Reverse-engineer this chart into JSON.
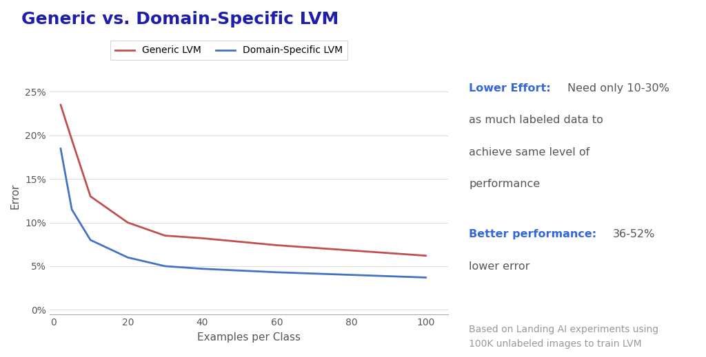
{
  "title": "Generic vs. Domain-Specific LVM",
  "title_color": "#1e1eaa",
  "title_fontsize": 18,
  "xlabel": "Examples per Class",
  "ylabel": "Error",
  "background_color": "#ffffff",
  "generic_x": [
    2,
    5,
    10,
    20,
    30,
    40,
    60,
    80,
    100
  ],
  "generic_y": [
    0.235,
    0.195,
    0.13,
    0.1,
    0.085,
    0.082,
    0.074,
    0.068,
    0.062
  ],
  "specific_x": [
    2,
    5,
    10,
    20,
    30,
    40,
    60,
    80,
    100
  ],
  "specific_y": [
    0.185,
    0.115,
    0.08,
    0.06,
    0.05,
    0.047,
    0.043,
    0.04,
    0.037
  ],
  "generic_color": "#c0504d",
  "specific_color": "#4472c4",
  "generic_label": "Generic LVM",
  "specific_label": "Domain-Specific LVM",
  "yticks": [
    0.0,
    0.05,
    0.1,
    0.15,
    0.2,
    0.25
  ],
  "ytick_labels": [
    "0%",
    "5%",
    "10%",
    "15%",
    "20%",
    "25%"
  ],
  "xticks": [
    0,
    20,
    40,
    60,
    80,
    100
  ],
  "grid_color": "#dddddd",
  "annotation_blue_color": "#3366dd",
  "annotation_text_color": "#555555",
  "footnote_color": "#999999",
  "lower_effort_bold": "Lower Effort:",
  "lower_effort_rest": " Need only 10-30%\nas much labeled data to\nachieve same level of\nperformance",
  "better_perf_bold": "Better performance:",
  "better_perf_rest": " 36-52%\nlower error",
  "footnote": "Based on Landing AI experiments using\n100K unlabeled images to train LVM"
}
